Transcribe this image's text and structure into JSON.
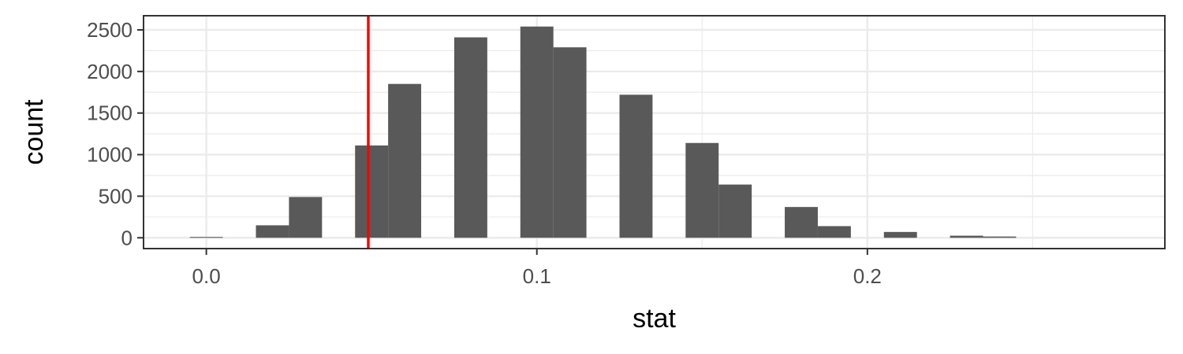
{
  "chart_data": {
    "type": "bar",
    "subtype": "histogram",
    "xlabel": "stat",
    "ylabel": "count",
    "xlim": [
      -0.019,
      0.29
    ],
    "ylim": [
      -130,
      2670
    ],
    "x_ticks": [
      0.0,
      0.1,
      0.2
    ],
    "x_tick_labels": [
      "0.0",
      "0.1",
      "0.2"
    ],
    "y_ticks": [
      0,
      500,
      1000,
      1500,
      2000,
      2500
    ],
    "y_tick_labels": [
      "0",
      "500",
      "1000",
      "1500",
      "2000",
      "2500"
    ],
    "bin_width": 0.01,
    "bins": [
      {
        "x_start": -0.005,
        "count": 10
      },
      {
        "x_start": 0.005,
        "count": 0
      },
      {
        "x_start": 0.015,
        "count": 150
      },
      {
        "x_start": 0.025,
        "count": 490
      },
      {
        "x_start": 0.035,
        "count": 0
      },
      {
        "x_start": 0.045,
        "count": 1110
      },
      {
        "x_start": 0.055,
        "count": 1850
      },
      {
        "x_start": 0.065,
        "count": 0
      },
      {
        "x_start": 0.075,
        "count": 2410
      },
      {
        "x_start": 0.085,
        "count": 0
      },
      {
        "x_start": 0.095,
        "count": 2540
      },
      {
        "x_start": 0.105,
        "count": 2290
      },
      {
        "x_start": 0.115,
        "count": 0
      },
      {
        "x_start": 0.125,
        "count": 1720
      },
      {
        "x_start": 0.135,
        "count": 0
      },
      {
        "x_start": 0.145,
        "count": 1140
      },
      {
        "x_start": 0.155,
        "count": 640
      },
      {
        "x_start": 0.165,
        "count": 0
      },
      {
        "x_start": 0.175,
        "count": 370
      },
      {
        "x_start": 0.185,
        "count": 140
      },
      {
        "x_start": 0.195,
        "count": 0
      },
      {
        "x_start": 0.205,
        "count": 70
      },
      {
        "x_start": 0.215,
        "count": 0
      },
      {
        "x_start": 0.225,
        "count": 25
      },
      {
        "x_start": 0.235,
        "count": 15
      }
    ],
    "vline": {
      "x": 0.049,
      "color": "#ff0000"
    },
    "bar_color": "#595959",
    "grid": true,
    "legend": "none"
  }
}
